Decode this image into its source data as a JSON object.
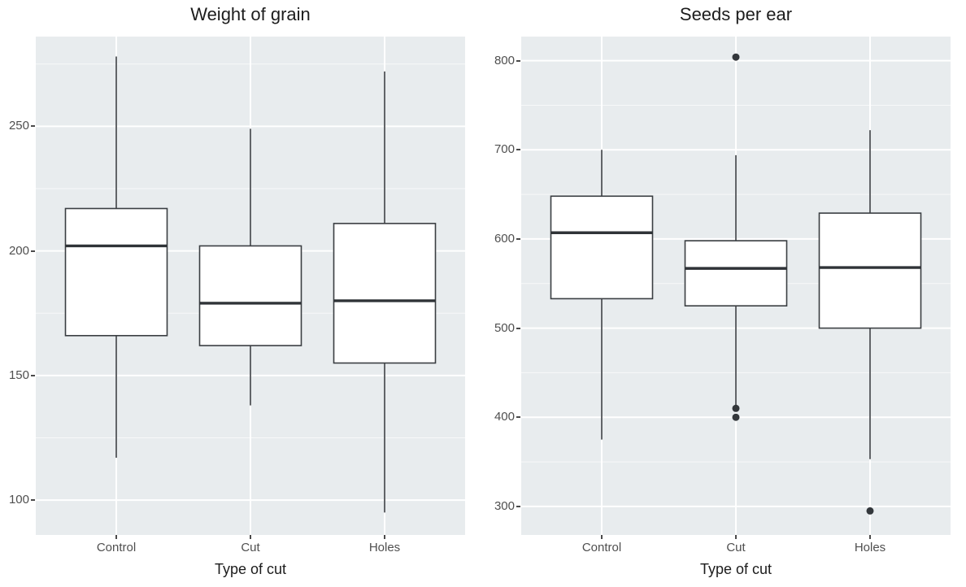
{
  "page": {
    "background": "#ffffff"
  },
  "style": {
    "panel_bg": "#e8ecee",
    "grid_major_color": "#ffffff",
    "grid_minor_color": "rgba(255,255,255,0.65)",
    "box_fill": "#ffffff",
    "box_stroke": "#3a3e42",
    "median_color": "#2f3337",
    "outlier_color": "#33373b",
    "tick_text_color": "#4f4f4f",
    "title_color": "#1c1c1c"
  },
  "chart_data": [
    {
      "type": "boxplot",
      "title": "Weight of grain",
      "xlabel": "Type of cut",
      "ylabel": "",
      "categories": [
        "Control",
        "Cut",
        "Holes"
      ],
      "ylim": [
        86,
        286
      ],
      "yticks": [
        100,
        150,
        200,
        250
      ],
      "grid": "on",
      "series": [
        {
          "name": "Control",
          "low": 117,
          "q1": 166,
          "median": 202,
          "q3": 217,
          "high": 278,
          "outliers": []
        },
        {
          "name": "Cut",
          "low": 138,
          "q1": 162,
          "median": 179,
          "q3": 202,
          "high": 249,
          "outliers": []
        },
        {
          "name": "Holes",
          "low": 95,
          "q1": 155,
          "median": 180,
          "q3": 211,
          "high": 272,
          "outliers": []
        }
      ]
    },
    {
      "type": "boxplot",
      "title": "Seeds per ear",
      "xlabel": "Type of cut",
      "ylabel": "",
      "categories": [
        "Control",
        "Cut",
        "Holes"
      ],
      "ylim": [
        268,
        827
      ],
      "yticks": [
        300,
        400,
        500,
        600,
        700,
        800
      ],
      "grid": "on",
      "series": [
        {
          "name": "Control",
          "low": 375,
          "q1": 533,
          "median": 607,
          "q3": 648,
          "high": 700,
          "outliers": []
        },
        {
          "name": "Cut",
          "low": 413,
          "q1": 525,
          "median": 567,
          "q3": 598,
          "high": 694,
          "outliers": [
            804,
            410,
            400
          ]
        },
        {
          "name": "Holes",
          "low": 353,
          "q1": 500,
          "median": 568,
          "q3": 629,
          "high": 722,
          "outliers": [
            295
          ]
        }
      ]
    }
  ]
}
